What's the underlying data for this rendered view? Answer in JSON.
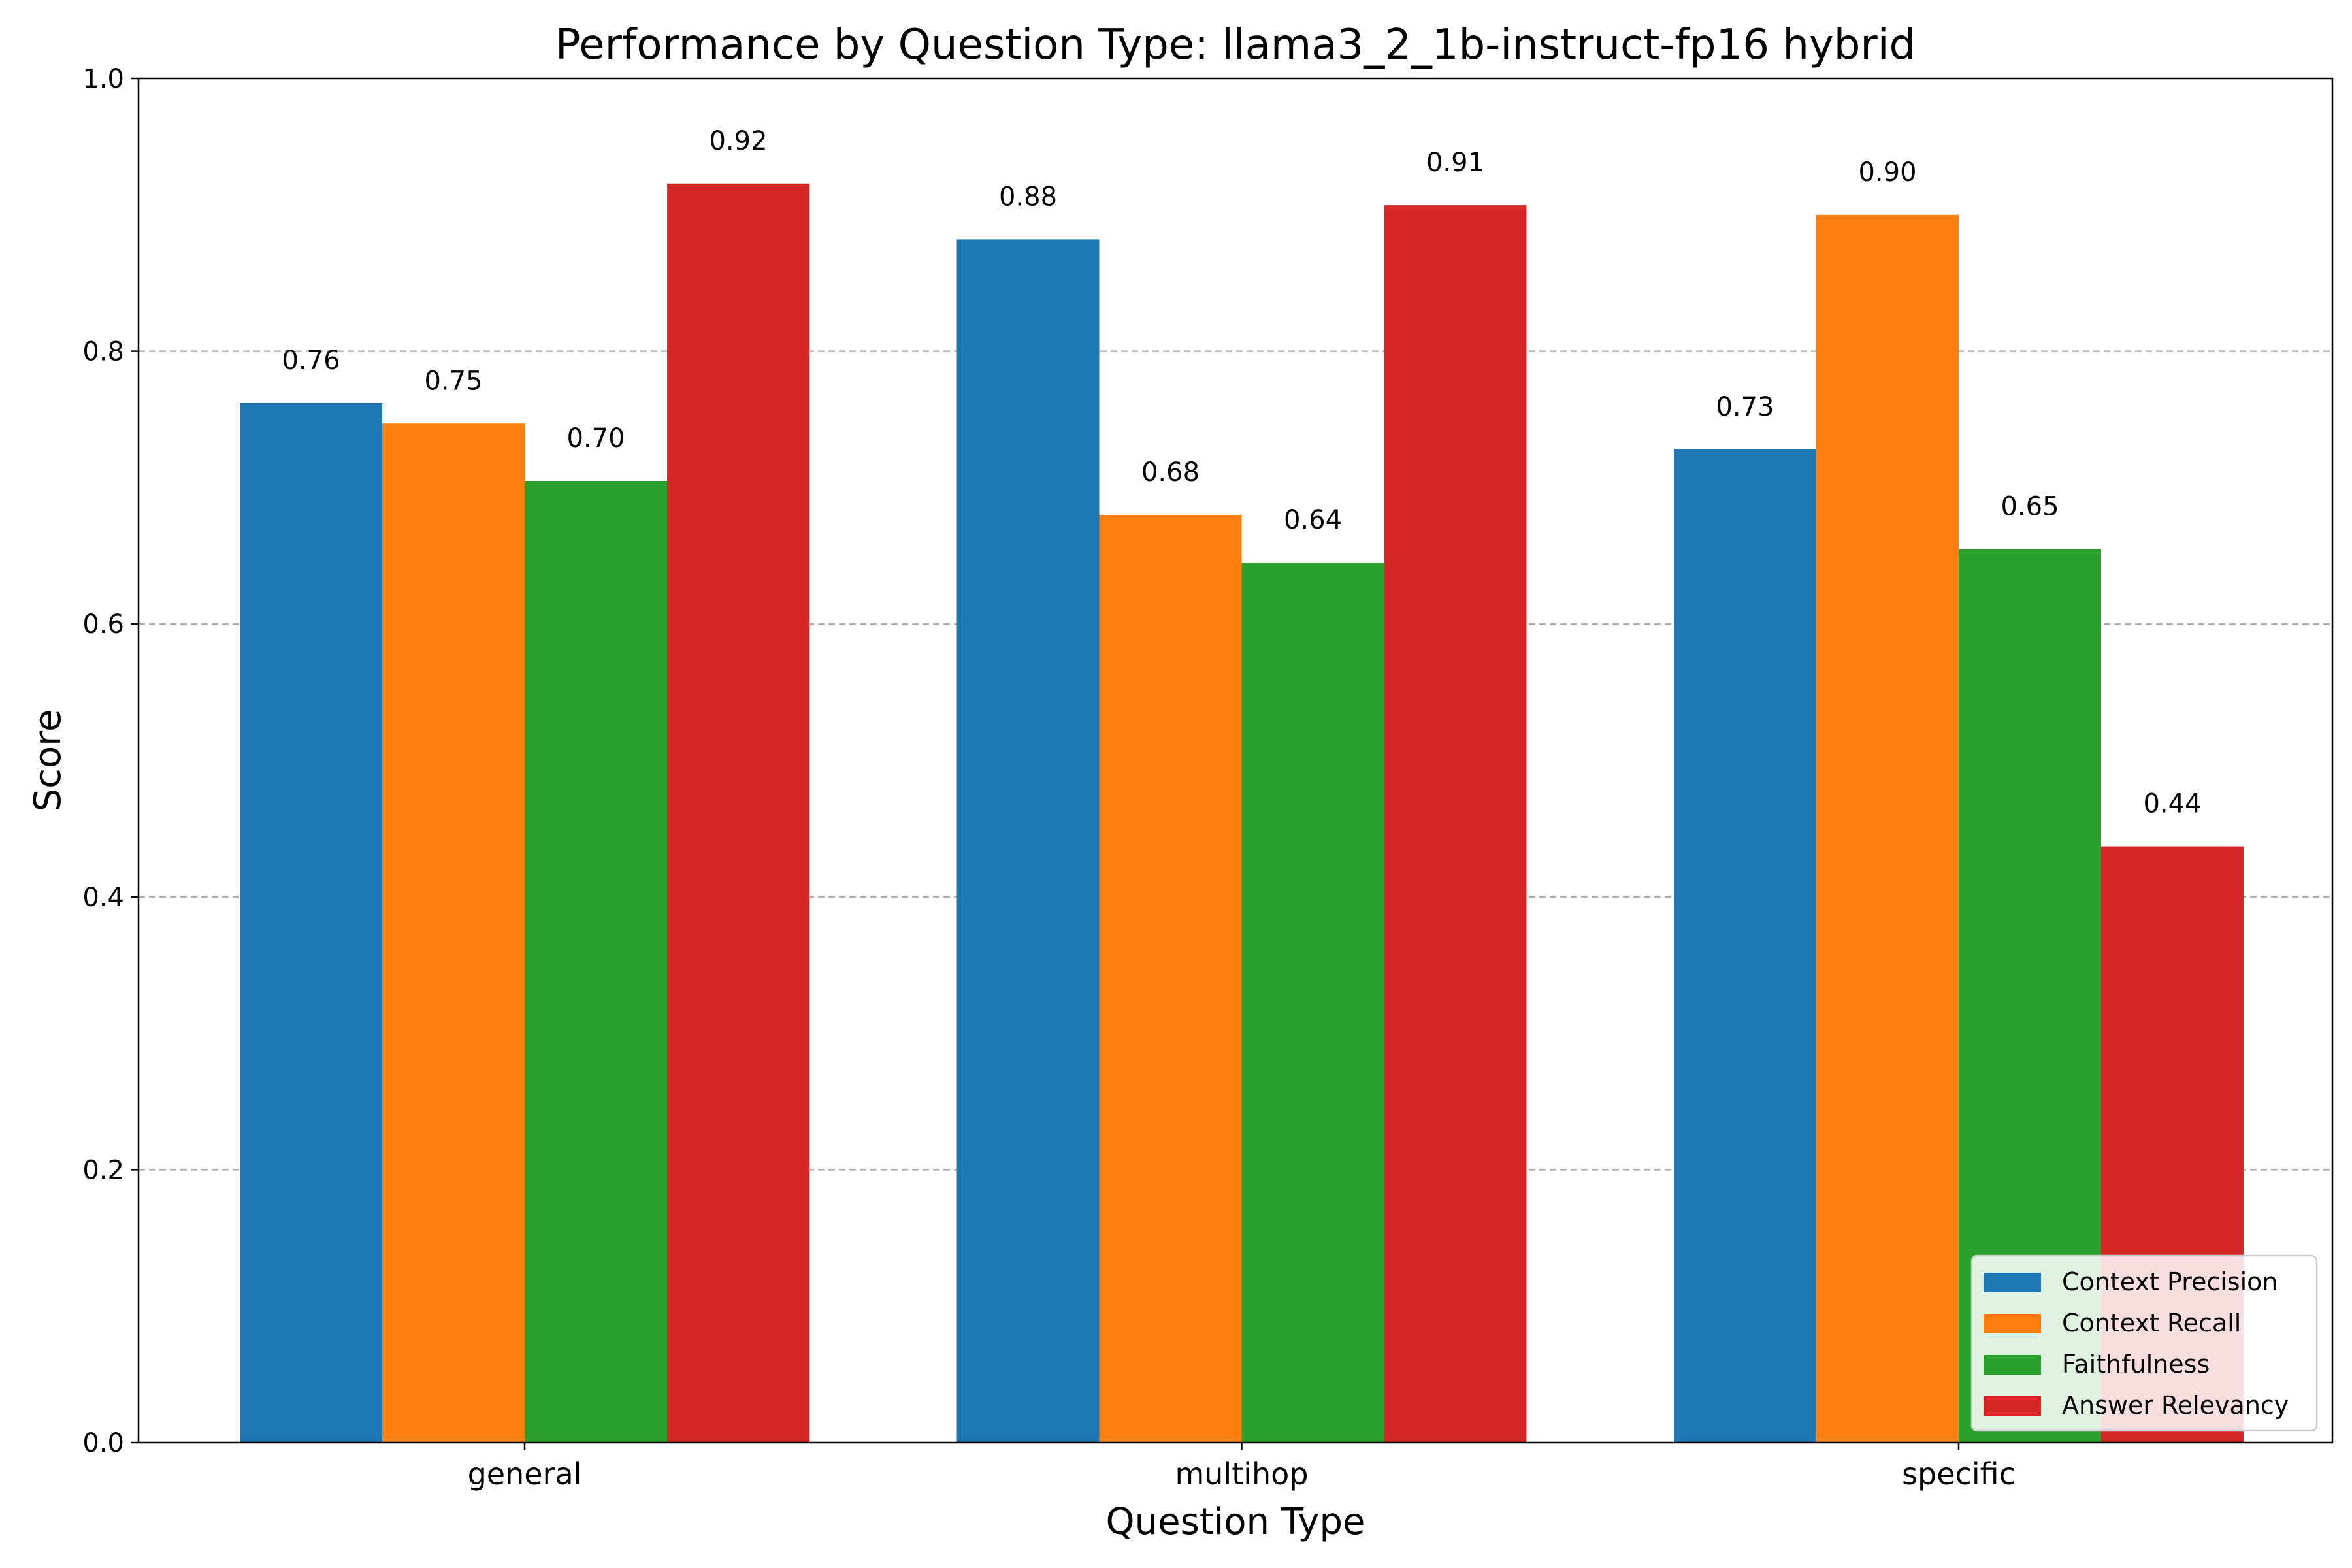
{
  "chart_data": {
    "type": "bar",
    "title": "Performance by Question Type: llama3_2_1b-instruct-fp16 hybrid",
    "xlabel": "Question Type",
    "ylabel": "Score",
    "categories": [
      "general",
      "multihop",
      "specific"
    ],
    "ylim": [
      0,
      1.0
    ],
    "yticks": [
      0.0,
      0.2,
      0.4,
      0.6,
      0.8,
      1.0
    ],
    "ytick_labels": [
      "0.0",
      "0.2",
      "0.4",
      "0.6",
      "0.8",
      "1.0"
    ],
    "grid": "y, dashed",
    "legend_position": "lower-right",
    "series": [
      {
        "name": "Context Precision",
        "color": "#1f77b4",
        "values": [
          0.762,
          0.882,
          0.728
        ],
        "labels": [
          "0.76",
          "0.88",
          "0.73"
        ]
      },
      {
        "name": "Context Recall",
        "color": "#ff7f0e",
        "values": [
          0.747,
          0.68,
          0.9
        ],
        "labels": [
          "0.75",
          "0.68",
          "0.90"
        ]
      },
      {
        "name": "Faithfulness",
        "color": "#2ca02c",
        "values": [
          0.705,
          0.645,
          0.655
        ],
        "labels": [
          "0.70",
          "0.64",
          "0.65"
        ]
      },
      {
        "name": "Answer Relevancy",
        "color": "#d62728",
        "values": [
          0.923,
          0.907,
          0.437
        ],
        "labels": [
          "0.92",
          "0.91",
          "0.44"
        ]
      }
    ]
  }
}
